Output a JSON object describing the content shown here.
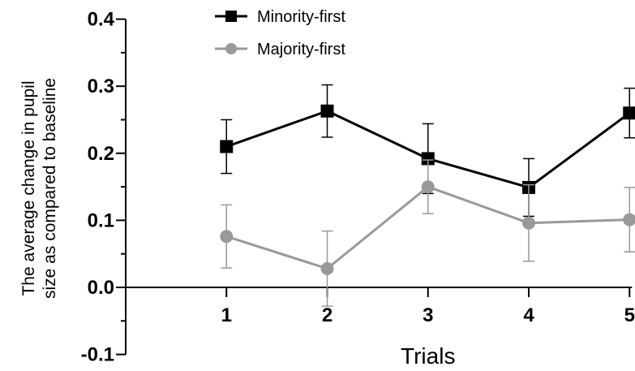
{
  "chart_data": {
    "type": "line",
    "xlabel": "Trials",
    "ylabel_lines": [
      "The average change in pupil",
      "size as compared to baseline"
    ],
    "x": [
      1,
      2,
      3,
      4,
      5
    ],
    "x_tick_labels": [
      "1",
      "2",
      "3",
      "4",
      "5"
    ],
    "xlim": [
      0,
      5
    ],
    "ylim": [
      -0.1,
      0.4
    ],
    "y_ticks": [
      -0.1,
      0.0,
      0.1,
      0.2,
      0.3,
      0.4
    ],
    "y_tick_labels": [
      "-0.1",
      "0.0",
      "0.1",
      "0.2",
      "0.3",
      "0.4"
    ],
    "grid": false,
    "legend_position": "top-center",
    "series": [
      {
        "name": "Minority-first",
        "marker": "square",
        "color": "#000000",
        "values": [
          0.21,
          0.263,
          0.192,
          0.149,
          0.26
        ],
        "error": [
          0.04,
          0.039,
          0.052,
          0.043,
          0.037
        ]
      },
      {
        "name": "Majority-first",
        "marker": "circle",
        "color": "#999999",
        "values": [
          0.076,
          0.028,
          0.15,
          0.096,
          0.101
        ],
        "error": [
          0.047,
          0.056,
          0.04,
          0.057,
          0.048
        ]
      }
    ]
  }
}
